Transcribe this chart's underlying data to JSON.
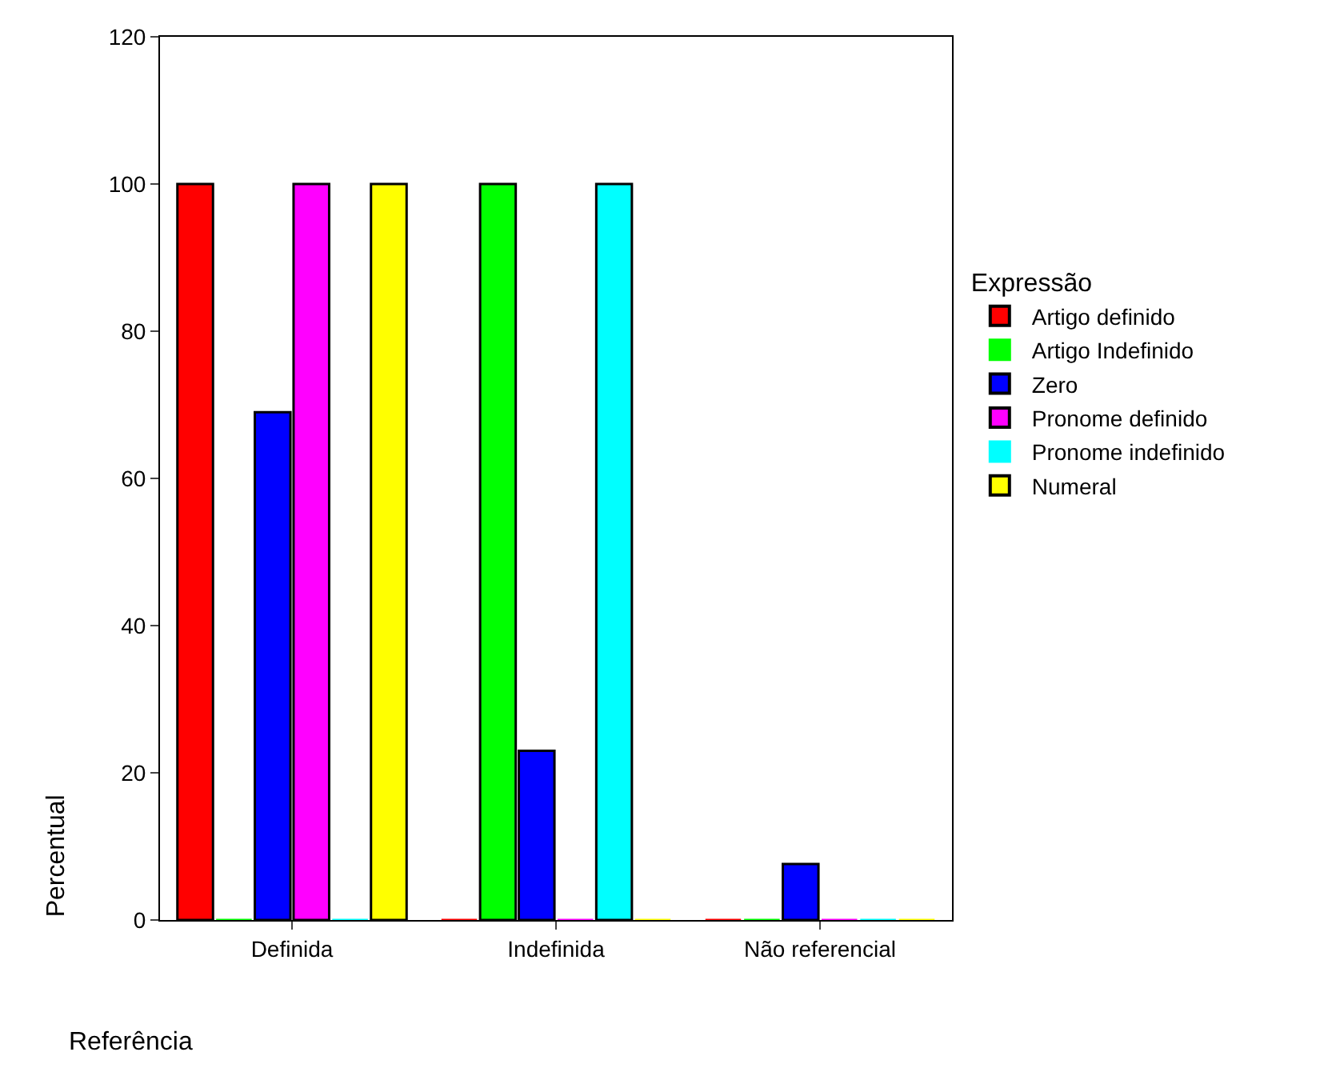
{
  "chart_data": {
    "type": "bar",
    "xlabel": "Referência",
    "ylabel": "Percentual",
    "legend_title": "Expressão",
    "categories": [
      "Definida",
      "Indefinida",
      "Não referencial"
    ],
    "series": [
      {
        "name": "Artigo definido",
        "color": "#ff0000",
        "values": [
          100,
          0,
          0
        ]
      },
      {
        "name": "Artigo Indefinido",
        "color": "#00ff00",
        "values": [
          0,
          100,
          0
        ]
      },
      {
        "name": "Zero",
        "color": "#0000ff",
        "values": [
          69,
          23,
          7.6
        ]
      },
      {
        "name": "Pronome definido",
        "color": "#ff00ff",
        "values": [
          100,
          0,
          0
        ]
      },
      {
        "name": "Pronome indefinido",
        "color": "#00ffff",
        "values": [
          0,
          100,
          0
        ]
      },
      {
        "name": "Numeral",
        "color": "#ffff00",
        "values": [
          100,
          0,
          0
        ]
      }
    ],
    "ylim": [
      0,
      120
    ],
    "yticks": [
      0,
      20,
      40,
      60,
      80,
      100,
      120
    ],
    "legend": "right"
  }
}
